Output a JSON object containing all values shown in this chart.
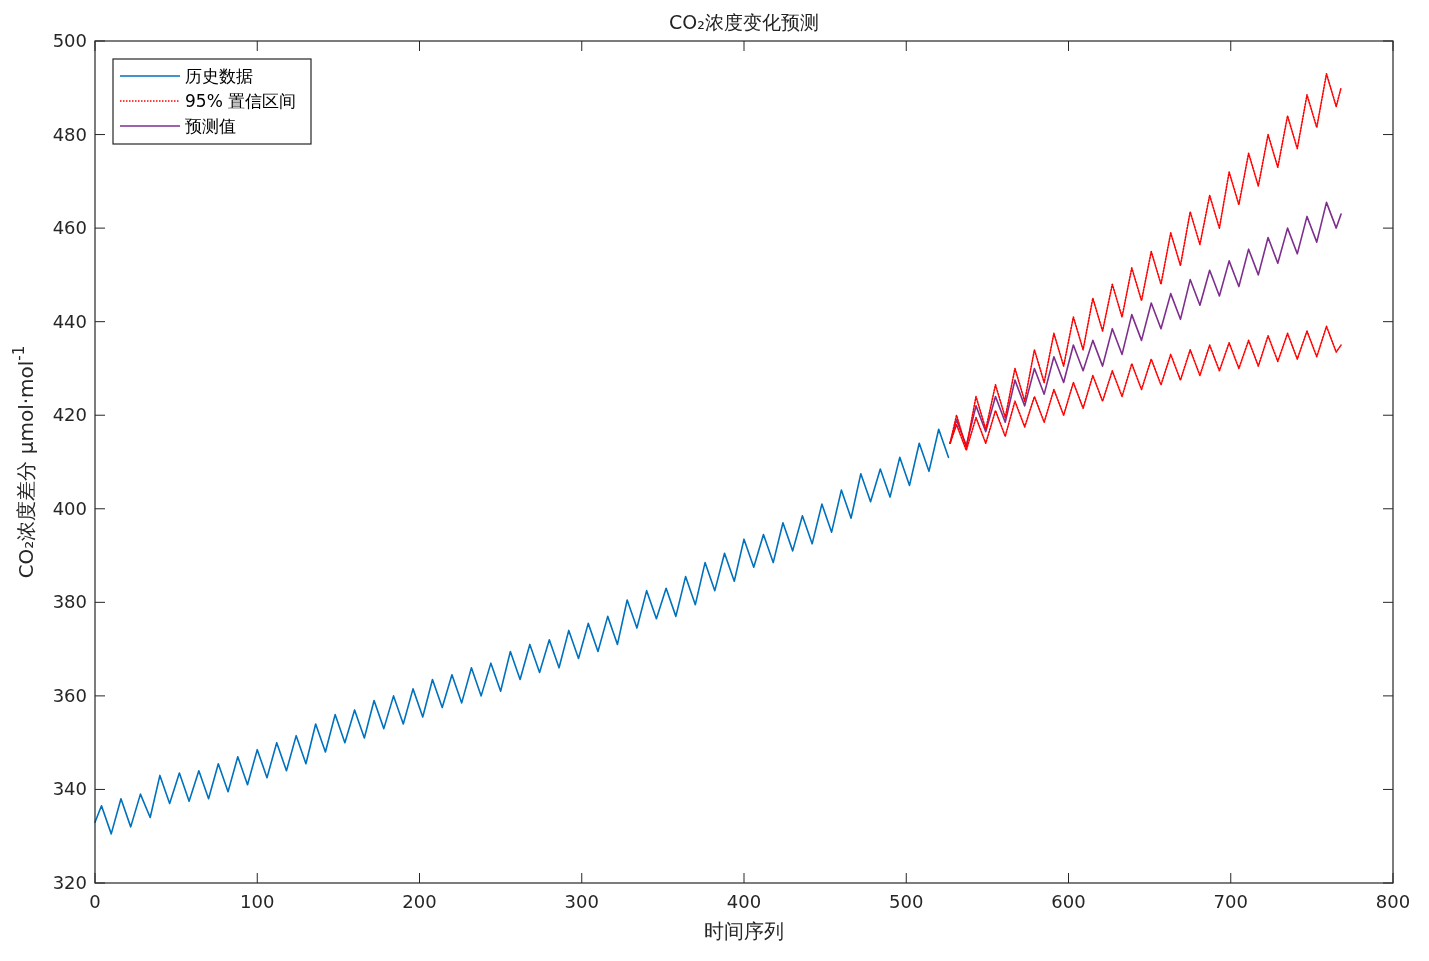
{
  "chart_data": {
    "type": "line",
    "title": "CO₂浓度变化预测",
    "xlabel": "时间序列",
    "ylabel": "CO₂浓度差分 μmol·mol$^{-1}$",
    "xlim": [
      0,
      800
    ],
    "xticks": [
      0,
      100,
      200,
      300,
      400,
      500,
      600,
      700,
      800
    ],
    "ylim": [
      320,
      500
    ],
    "yticks": [
      320,
      340,
      360,
      380,
      400,
      420,
      440,
      460,
      480,
      500
    ],
    "grid": false,
    "legend": "top left",
    "marker": "none",
    "series": [
      {
        "name": "历史数据",
        "color": "#0072bd",
        "line_style": "solid",
        "x": [
          0,
          4,
          10,
          16,
          22,
          28,
          34,
          40,
          46,
          52,
          58,
          64,
          70,
          76,
          82,
          88,
          94,
          100,
          106,
          112,
          118,
          124,
          130,
          136,
          142,
          148,
          154,
          160,
          166,
          172,
          178,
          184,
          190,
          196,
          202,
          208,
          214,
          220,
          226,
          232,
          238,
          244,
          250,
          256,
          262,
          268,
          274,
          280,
          286,
          292,
          298,
          304,
          310,
          316,
          322,
          328,
          334,
          340,
          346,
          352,
          358,
          364,
          370,
          376,
          382,
          388,
          394,
          400,
          406,
          412,
          418,
          424,
          430,
          436,
          442,
          448,
          454,
          460,
          466,
          472,
          478,
          484,
          490,
          496,
          502,
          508,
          514,
          520,
          526
        ],
        "values": [
          333,
          336.5,
          330.5,
          338,
          332,
          339,
          334,
          343,
          337,
          343.5,
          337.5,
          344,
          338,
          345.5,
          339.5,
          347,
          341,
          348.5,
          342.5,
          350,
          344,
          351.5,
          345.5,
          354,
          348,
          356,
          350,
          357,
          351,
          359,
          353,
          360,
          354,
          361.5,
          355.5,
          363.5,
          357.5,
          364.5,
          358.5,
          366,
          360,
          367,
          361,
          369.5,
          363.5,
          371,
          365,
          372,
          366,
          374,
          368,
          375.5,
          369.5,
          377,
          371,
          380.5,
          374.5,
          382.5,
          376.5,
          383,
          377,
          385.5,
          379.5,
          388.5,
          382.5,
          390.5,
          384.5,
          393.5,
          387.5,
          394.5,
          388.5,
          397,
          391,
          398.5,
          392.5,
          401,
          395,
          404,
          398,
          407.5,
          401.5,
          408.5,
          402.5,
          411,
          405,
          414,
          408,
          417,
          411
        ]
      },
      {
        "name": "95% 置信区间",
        "color": "#ff0000",
        "line_style": "dotted",
        "x": [
          527,
          531,
          537,
          543,
          549,
          555,
          561,
          567,
          573,
          579,
          585,
          591,
          597,
          603,
          609,
          615,
          621,
          627,
          633,
          639,
          645,
          651,
          657,
          663,
          669,
          675,
          681,
          687,
          693,
          699,
          705,
          711,
          717,
          723,
          729,
          735,
          741,
          747,
          753,
          759,
          765,
          768
        ],
        "values": [
          414,
          420,
          413,
          424,
          417,
          426.5,
          419.5,
          430,
          423,
          434,
          427,
          437.5,
          430.5,
          441,
          434,
          445,
          438,
          448,
          441,
          451.5,
          444.5,
          455,
          448,
          459,
          452,
          463.5,
          456.5,
          467,
          460,
          472,
          465,
          476,
          469,
          480,
          473,
          484,
          477,
          488.5,
          481.5,
          493,
          486,
          490
        ]
      },
      {
        "color": "#ff0000",
        "line_style": "dotted",
        "x": [
          527,
          531,
          537,
          543,
          549,
          555,
          561,
          567,
          573,
          579,
          585,
          591,
          597,
          603,
          609,
          615,
          621,
          627,
          633,
          639,
          645,
          651,
          657,
          663,
          669,
          675,
          681,
          687,
          693,
          699,
          705,
          711,
          717,
          723,
          729,
          735,
          741,
          747,
          753,
          759,
          765,
          768
        ],
        "values": [
          414,
          418,
          412.5,
          419.5,
          414,
          421,
          415.5,
          423,
          417.5,
          424,
          418.5,
          425.5,
          420,
          427,
          421.5,
          428.5,
          423,
          429.5,
          424,
          431,
          425.5,
          432,
          426.5,
          433,
          427.5,
          434,
          428.5,
          435,
          429.5,
          435.5,
          430,
          436,
          430.5,
          437,
          431.5,
          437.5,
          432,
          438,
          432.5,
          439,
          433.5,
          435
        ]
      },
      {
        "name": "预测值",
        "color": "#7e2f8e",
        "line_style": "solid",
        "x": [
          527,
          531,
          537,
          543,
          549,
          555,
          561,
          567,
          573,
          579,
          585,
          591,
          597,
          603,
          609,
          615,
          621,
          627,
          633,
          639,
          645,
          651,
          657,
          663,
          669,
          675,
          681,
          687,
          693,
          699,
          705,
          711,
          717,
          723,
          729,
          735,
          741,
          747,
          753,
          759,
          765,
          768
        ],
        "values": [
          414,
          419,
          413.5,
          422,
          416.5,
          424,
          418.5,
          427.5,
          422,
          430,
          424.5,
          432.5,
          427,
          435,
          429.5,
          436,
          430.5,
          438.5,
          433,
          441.5,
          436,
          444,
          438.5,
          446,
          440.5,
          449,
          443.5,
          451,
          445.5,
          453,
          447.5,
          455.5,
          450,
          458,
          452.5,
          460,
          454.5,
          462.5,
          457,
          465.5,
          460,
          463
        ]
      }
    ]
  }
}
